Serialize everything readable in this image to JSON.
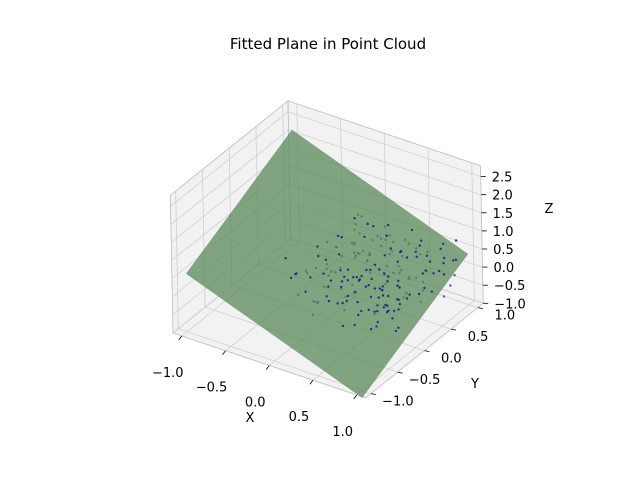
{
  "chart_data": {
    "type": "scatter",
    "subtype": "3d-scatter-with-surface",
    "title": "Fitted Plane in Point Cloud",
    "xlabel": "X",
    "ylabel": "Y",
    "zlabel": "Z",
    "xlim": [
      -1.1,
      1.1
    ],
    "ylim": [
      -1.1,
      1.1
    ],
    "zlim": [
      -1.0,
      2.8
    ],
    "xticks": [
      "−1.0",
      "−0.5",
      "0.0",
      "0.5",
      "1.0"
    ],
    "yticks": [
      "−1.0",
      "−0.5",
      "0.0",
      "0.5",
      "1.0"
    ],
    "zticks": [
      "−1.0",
      "−0.5",
      "0.0",
      "0.5",
      "1.0",
      "1.5",
      "2.0",
      "2.5"
    ],
    "grid": true,
    "plane": {
      "name": "",
      "color": "#5a8a5a",
      "opacity": 0.75,
      "equation": "z = 0.5 - 0.9x + 0.8y",
      "x_range": [
        -1.0,
        1.0
      ],
      "y_range": [
        -1.0,
        1.0
      ]
    },
    "points": {
      "name": "",
      "color": "#1a2a8a",
      "count": 200,
      "x_range": [
        -0.2,
        1.0
      ],
      "y_range": [
        -0.6,
        0.9
      ],
      "z_center": 0.4
    },
    "colors": {
      "pane": "#f2f2f2",
      "pane_edge": "#bcbcbc",
      "grid": "#d0d0d0"
    }
  }
}
